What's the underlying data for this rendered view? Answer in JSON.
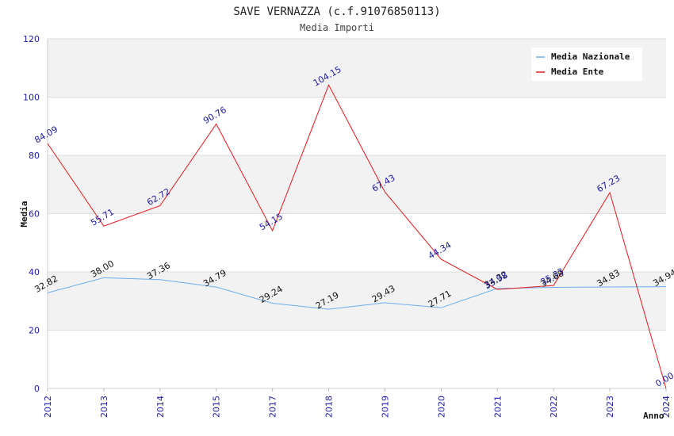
{
  "chart_data": {
    "type": "line",
    "title": "SAVE VERNAZZA (c.f.91076850113)",
    "subtitle": "Media Importi",
    "xlabel": "Anno",
    "ylabel": "Media",
    "ylim": [
      0,
      120
    ],
    "yticks": [
      "0",
      "20",
      "40",
      "60",
      "80",
      "100",
      "120"
    ],
    "categories": [
      "2012",
      "2013",
      "2014",
      "2015",
      "2017",
      "2018",
      "2019",
      "2020",
      "2021",
      "2022",
      "2023",
      "2024"
    ],
    "legend_position": "top-right",
    "series": [
      {
        "name": "Media Nazionale",
        "color": "#6aaef0",
        "label_color": "#111111",
        "values": [
          32.82,
          38.0,
          37.36,
          34.79,
          29.24,
          27.19,
          29.43,
          27.71,
          34.32,
          34.68,
          34.83,
          34.94
        ],
        "labels": [
          "32.82",
          "38.00",
          "37.36",
          "34.79",
          "29.24",
          "27.19",
          "29.43",
          "27.71",
          "34.32",
          "34.68",
          "34.83",
          "34.94"
        ]
      },
      {
        "name": "Media Ente",
        "color": "#e31a1c",
        "label_color": "#1a1aa6",
        "values": [
          84.09,
          55.71,
          62.72,
          90.76,
          54.15,
          104.15,
          67.43,
          44.34,
          33.98,
          35.33,
          67.23,
          0.0
        ],
        "labels": [
          "84.09",
          "55.71",
          "62.72",
          "90.76",
          "54.15",
          "104.15",
          "67.43",
          "44.34",
          "33.98",
          "35.33",
          "67.23",
          "0.00"
        ]
      }
    ]
  }
}
